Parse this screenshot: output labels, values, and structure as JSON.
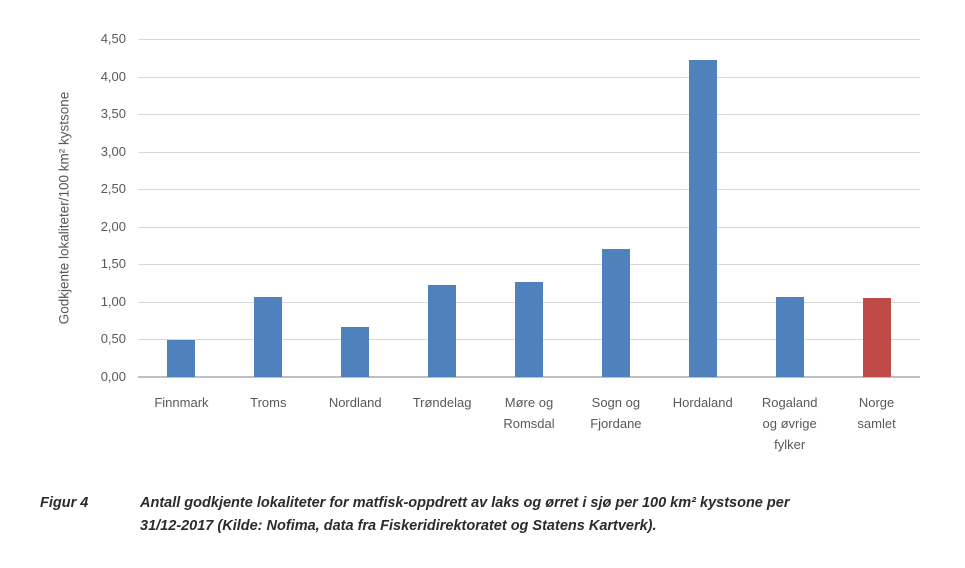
{
  "chart_data": {
    "type": "bar",
    "title": "",
    "xlabel": "",
    "ylabel": "Godkjente lokaliteter/100 km² kystsone",
    "ylim": [
      0,
      4.5
    ],
    "ytick_step": 0.5,
    "ytick_labels": [
      "0,00",
      "0,50",
      "1,00",
      "1,50",
      "2,00",
      "2,50",
      "3,00",
      "3,50",
      "4,00",
      "4,50"
    ],
    "grid": true,
    "legend_position": "none",
    "categories": [
      "Finnmark",
      "Troms",
      "Nordland",
      "Trøndelag",
      "Møre og Romsdal",
      "Sogn og Fjordane",
      "Hordaland",
      "Rogaland og øvrige fylker",
      "Norge samlet"
    ],
    "category_label_lines": [
      [
        "Finnmark"
      ],
      [
        "Troms"
      ],
      [
        "Nordland"
      ],
      [
        "Trøndelag"
      ],
      [
        "Møre og",
        "Romsdal"
      ],
      [
        "Sogn og",
        "Fjordane"
      ],
      [
        "Hordaland"
      ],
      [
        "Rogaland",
        "og øvrige",
        "fylker"
      ],
      [
        "Norge",
        "samlet"
      ]
    ],
    "values": [
      0.49,
      1.06,
      0.66,
      1.23,
      1.26,
      1.71,
      4.22,
      1.07,
      1.05
    ],
    "bar_colors": [
      "#4F81BD",
      "#4F81BD",
      "#4F81BD",
      "#4F81BD",
      "#4F81BD",
      "#4F81BD",
      "#4F81BD",
      "#4F81BD",
      "#BE4B48"
    ],
    "colors": {
      "bar_default": "#4F81BD",
      "bar_highlight": "#BE4B48",
      "gridline": "#D9D9D9",
      "axis_line": "#BFBFBF",
      "axis_text": "#595959"
    }
  },
  "caption": {
    "label": "Figur 4",
    "lines": [
      "Antall godkjente lokaliteter for matfisk-oppdrett av laks og ørret i sjø per 100 km² kystsone per",
      "31/12-2017 (Kilde: Nofima, data fra Fiskeridirektoratet og Statens Kartverk)."
    ]
  }
}
